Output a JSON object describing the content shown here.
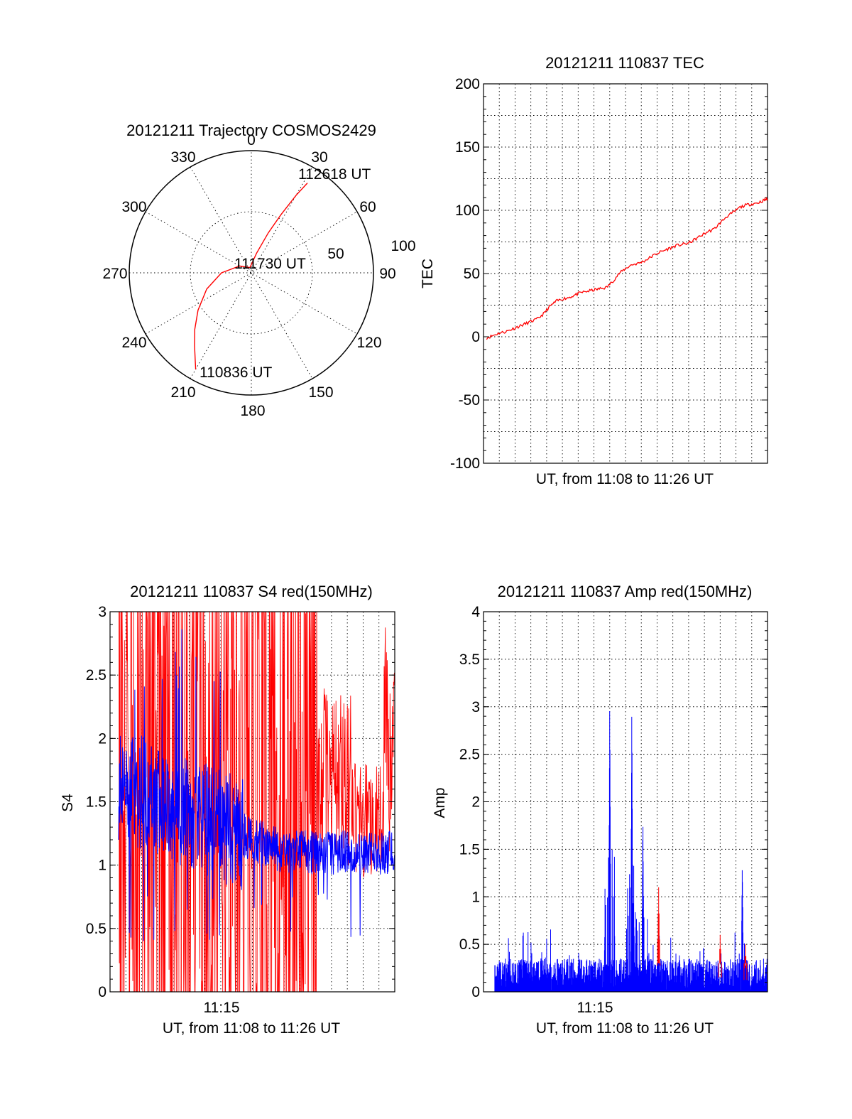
{
  "chart_data": [
    {
      "type": "polar",
      "title": "20121211 Trajectory COSMOS2429",
      "azimuth_labels": [
        "0",
        "30",
        "60",
        "90",
        "120",
        "150",
        "180",
        "210",
        "240",
        "270",
        "300",
        "330"
      ],
      "radial_labels": [
        "50",
        "100"
      ],
      "trajectory_azimuth": [
        210,
        213,
        218,
        225,
        235,
        250,
        270,
        300,
        345,
        15,
        23,
        27,
        30,
        32
      ],
      "trajectory_elevation": [
        8,
        14,
        22,
        31,
        42,
        55,
        68,
        80,
        86,
        75,
        58,
        42,
        24,
        12
      ],
      "annotations": [
        "110836 UT",
        "111730 UT",
        "112618 UT"
      ],
      "series": [
        {
          "color": "#ff0000"
        }
      ]
    },
    {
      "type": "line",
      "title": "20121211 110837 TEC",
      "xlabel": "UT, from 11:08 to 11:26 UT",
      "ylabel": "TEC",
      "ylim": [
        -100,
        200
      ],
      "yticks": [
        "200",
        "150",
        "100",
        "50",
        "0",
        "-50",
        "-100"
      ],
      "xlim": [
        "11:08",
        "11:26"
      ],
      "grid": true,
      "series": [
        {
          "color": "#ff0000",
          "time_min": [
            0.2,
            0.6,
            1.0,
            1.4,
            1.8,
            2.2,
            2.6,
            3.0,
            3.4,
            3.8,
            4.2,
            4.6,
            5.0,
            5.4,
            5.8,
            6.2,
            6.6,
            7.0,
            7.4,
            7.8,
            8.2,
            8.6,
            9.0,
            9.4,
            9.8,
            10.2,
            10.6,
            11.0,
            11.4,
            11.8,
            12.2,
            12.6,
            13.0,
            13.4,
            13.8,
            14.2,
            14.6,
            15.0,
            15.4,
            15.8,
            16.2,
            16.6,
            17.0,
            17.4,
            17.8,
            18.0
          ],
          "values": [
            -1,
            1,
            3,
            4,
            6,
            8,
            10,
            12,
            14,
            18,
            24,
            28,
            30,
            31,
            33,
            35,
            36,
            37,
            38,
            39,
            44,
            50,
            54,
            57,
            58,
            60,
            63,
            66,
            68,
            70,
            72,
            73,
            74,
            77,
            80,
            83,
            85,
            90,
            95,
            98,
            102,
            104,
            105,
            106,
            108,
            109
          ]
        }
      ]
    },
    {
      "type": "line",
      "title": "20121211 110837 S4 red(150MHz)",
      "xlabel": "UT, from 11:08 to 11:26 UT",
      "ylabel": "S4",
      "ylim": [
        0,
        3
      ],
      "yticks": [
        "3",
        "2.5",
        "2",
        "1.5",
        "1",
        "0.5",
        "0"
      ],
      "xticklabels": [
        "11:15"
      ],
      "grid": true,
      "series": [
        {
          "color": "#ff0000",
          "note_values": [
            1.5,
            3,
            0,
            3,
            1.2,
            3,
            0,
            2.4,
            3,
            0,
            3,
            1.8,
            3,
            0,
            3,
            1.1,
            2.6,
            0,
            3,
            1.4,
            2.9,
            0,
            3,
            1.6,
            3,
            1.2,
            2.2,
            0.9,
            2.8,
            1.4,
            1.1,
            1.6,
            2.6
          ]
        },
        {
          "color": "#0000ff",
          "note_values": [
            1.5,
            1.9,
            1.6,
            1.8,
            1.5,
            1.7,
            1.6,
            1.45,
            1.55,
            1.4,
            1.5,
            1.35,
            1.3,
            1.25,
            1.2,
            1.25,
            1.2,
            1.15,
            1.2,
            1.1,
            1.15,
            1.1
          ]
        }
      ]
    },
    {
      "type": "line",
      "title": "20121211 110837 Amp red(150MHz)",
      "xlabel": "UT, from 11:08 to 11:26 UT",
      "ylabel": "Amp",
      "ylim": [
        0,
        4
      ],
      "yticks": [
        "4",
        "3.5",
        "3",
        "2.5",
        "2",
        "1.5",
        "1",
        "0.5",
        "0"
      ],
      "xticklabels": [
        "11:15"
      ],
      "grid": true,
      "series": [
        {
          "color": "#ff0000",
          "peaks_time_min": [
            11.1,
            15.0,
            16.6
          ],
          "peaks_values": [
            1.1,
            0.6,
            0.5
          ]
        },
        {
          "color": "#0000ff",
          "baseline": 0.35,
          "peaks_time_min": [
            8.0,
            9.4,
            10.1,
            16.4
          ],
          "peaks_values": [
            3.05,
            3.0,
            1.85,
            1.35
          ]
        }
      ]
    }
  ]
}
